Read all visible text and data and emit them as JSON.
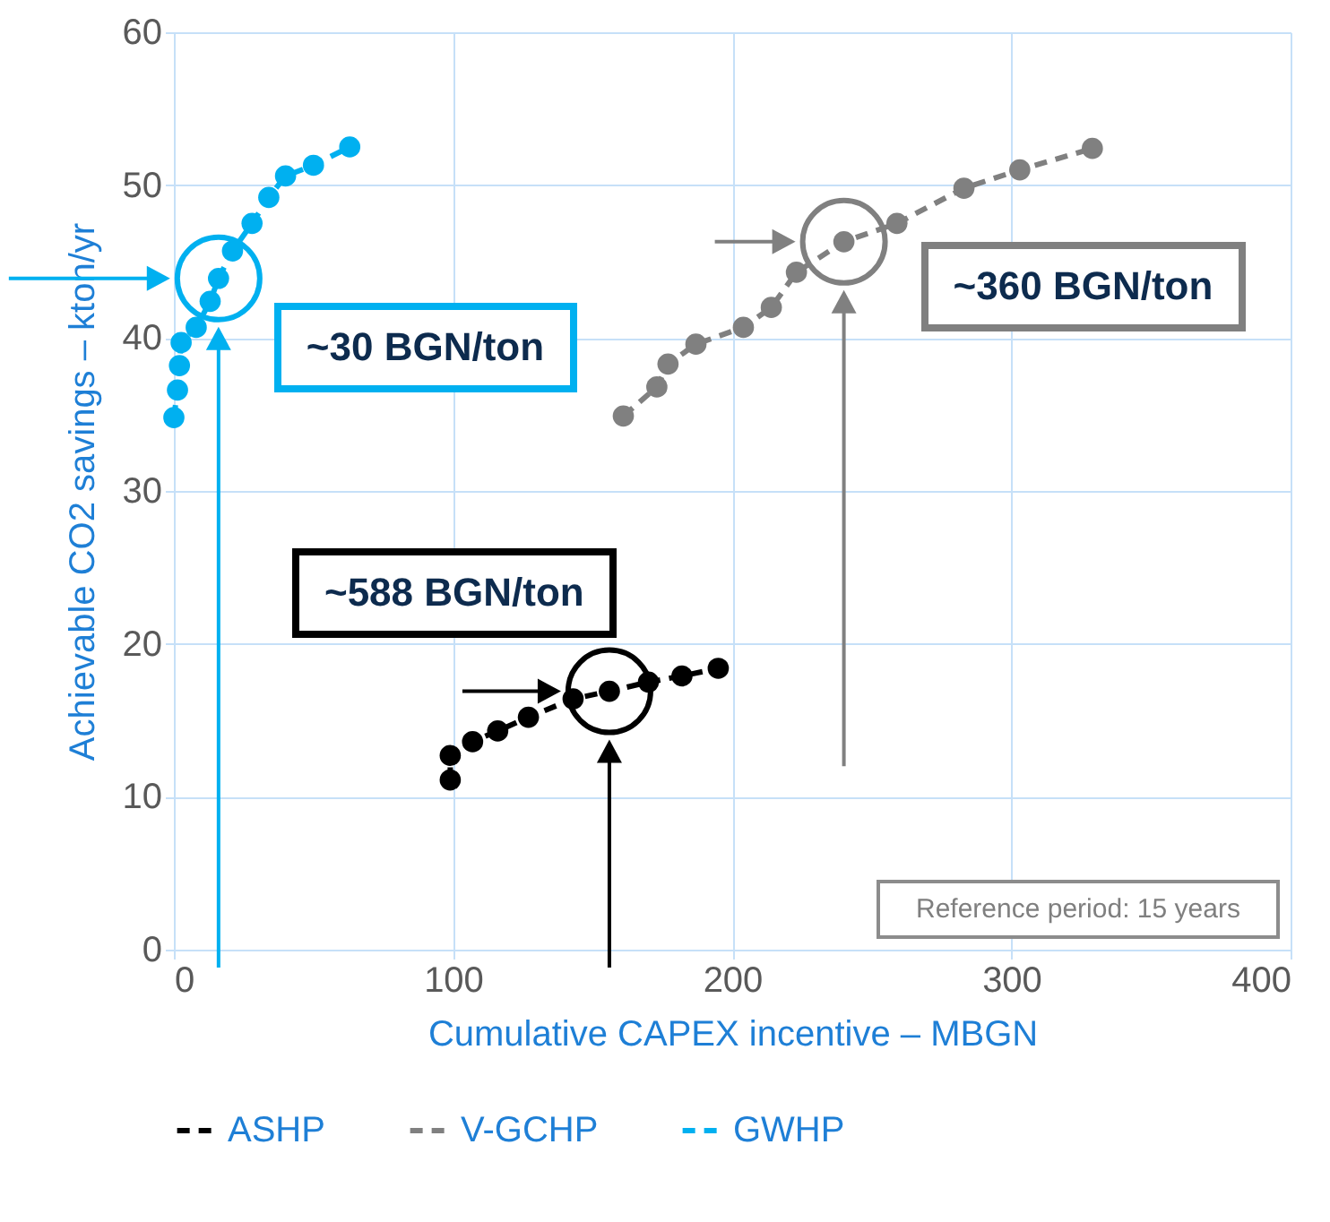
{
  "chart_data": {
    "type": "line",
    "xlabel": "Cumulative CAPEX incentive – MBGN",
    "ylabel": "Achievable CO2 savings – kton/yr",
    "xlim": [
      0,
      400
    ],
    "xticks": [
      0,
      100,
      200,
      300,
      400
    ],
    "ylim": [
      0,
      60
    ],
    "yticks": [
      0,
      10,
      20,
      30,
      40,
      50,
      60
    ],
    "grid": true,
    "legend": "bottom",
    "marker": "circle",
    "line_style": "dashed",
    "series": [
      {
        "name": "ASHP",
        "color": "#000000",
        "x": [
          99,
          99,
          107,
          116,
          127,
          143,
          156,
          170,
          182,
          195
        ],
        "values": [
          11.1,
          12.7,
          13.6,
          14.3,
          15.2,
          16.4,
          16.9,
          17.5,
          17.9,
          18.4
        ]
      },
      {
        "name": "V-GCHP",
        "color": "#808080",
        "x": [
          161,
          173,
          177,
          187,
          204,
          214,
          223,
          240,
          259,
          283,
          303,
          329
        ],
        "values": [
          34.9,
          36.8,
          38.3,
          39.6,
          40.7,
          42.0,
          44.3,
          46.3,
          47.5,
          49.8,
          51.0,
          52.4
        ]
      },
      {
        "name": "GWHP",
        "color": "#00b0f0",
        "x": [
          0,
          1.3,
          2,
          2.6,
          8,
          13,
          16,
          21,
          28,
          34,
          40,
          50,
          63
        ],
        "values": [
          34.8,
          36.6,
          38.2,
          39.7,
          40.7,
          42.4,
          43.9,
          45.7,
          47.5,
          49.2,
          50.6,
          51.3,
          52.5
        ]
      }
    ],
    "annotations": [
      {
        "text": "~30 BGN/ton",
        "x": 16,
        "y": 43.9
      },
      {
        "text": "~360 BGN/ton",
        "x": 240,
        "y": 46.3
      },
      {
        "text": "~588 BGN/ton",
        "x": 156,
        "y": 16.9
      },
      "Reference period: 15 years"
    ]
  }
}
